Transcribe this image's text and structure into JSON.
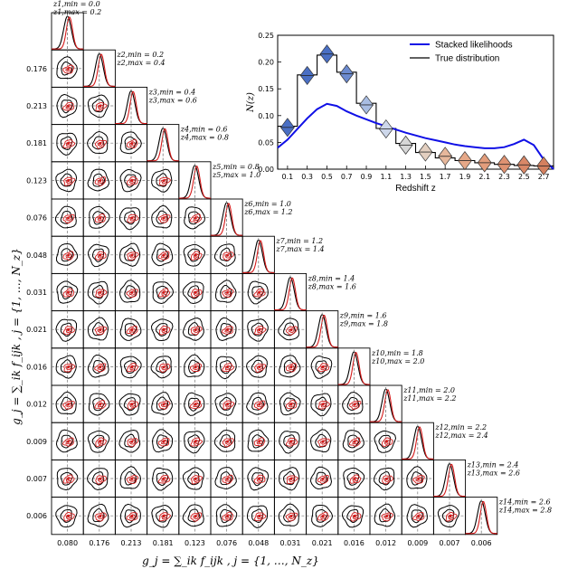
{
  "colors": {
    "black": "#000000",
    "red": "#d41a1a",
    "blue": "#1010e6",
    "dash": "#777777"
  },
  "corner": {
    "xlabel": "g_j = ∑_ik f_ijk   ,   j = {1, …, N_z}",
    "ylabel": "g_j = ∑_ik f_ijk   ,   j = {1, …, N_z}",
    "values": [
      "0.080",
      "0.176",
      "0.213",
      "0.181",
      "0.123",
      "0.076",
      "0.048",
      "0.031",
      "0.021",
      "0.016",
      "0.012",
      "0.009",
      "0.007",
      "0.006"
    ],
    "bins": [
      {
        "min": "z1,min = 0.0",
        "max": "z1,max = 0.2"
      },
      {
        "min": "z2,min = 0.2",
        "max": "z2,max = 0.4"
      },
      {
        "min": "z3,min = 0.4",
        "max": "z3,max = 0.6"
      },
      {
        "min": "z4,min = 0.6",
        "max": "z4,max = 0.8"
      },
      {
        "min": "z5,min = 0.8",
        "max": "z5,max = 1.0"
      },
      {
        "min": "z6,min = 1.0",
        "max": "z6,max = 1.2"
      },
      {
        "min": "z7,min = 1.2",
        "max": "z7,max = 1.4"
      },
      {
        "min": "z8,min = 1.4",
        "max": "z8,max = 1.6"
      },
      {
        "min": "z9,min = 1.6",
        "max": "z9,max = 1.8"
      },
      {
        "min": "z10,min = 1.8",
        "max": "z10,max = 2.0"
      },
      {
        "min": "z11,min = 2.0",
        "max": "z11,max = 2.2"
      },
      {
        "min": "z12,min = 2.2",
        "max": "z12,max = 2.4"
      },
      {
        "min": "z13,min = 2.4",
        "max": "z13,max = 2.6"
      },
      {
        "min": "z14,min = 2.6",
        "max": "z14,max = 2.8"
      }
    ]
  },
  "chart_data": {
    "type": "line",
    "xlabel": "Redshift z",
    "ylabel": "N(z)",
    "xlim": [
      0.0,
      2.8
    ],
    "ylim": [
      0.0,
      0.25
    ],
    "xticks": [
      "0.1",
      "0.3",
      "0.5",
      "0.7",
      "0.9",
      "1.1",
      "1.3",
      "1.5",
      "1.7",
      "1.9",
      "2.1",
      "2.3",
      "2.5",
      "2.7"
    ],
    "yticks": [
      "0.00",
      "0.05",
      "0.10",
      "0.15",
      "0.20",
      "0.25"
    ],
    "legend": {
      "position": "top-right",
      "entries": [
        "Stacked likelihoods",
        "True distribution"
      ]
    },
    "series": [
      {
        "name": "Stacked likelihoods",
        "color": "#1010e6",
        "x": [
          0.0,
          0.1,
          0.2,
          0.3,
          0.4,
          0.5,
          0.6,
          0.7,
          0.8,
          0.9,
          1.0,
          1.1,
          1.2,
          1.3,
          1.4,
          1.5,
          1.6,
          1.7,
          1.8,
          1.9,
          2.0,
          2.1,
          2.2,
          2.3,
          2.4,
          2.5,
          2.6,
          2.7,
          2.8
        ],
        "y": [
          0.04,
          0.055,
          0.075,
          0.095,
          0.112,
          0.122,
          0.118,
          0.108,
          0.1,
          0.093,
          0.086,
          0.08,
          0.074,
          0.068,
          0.063,
          0.058,
          0.054,
          0.05,
          0.046,
          0.043,
          0.041,
          0.039,
          0.039,
          0.041,
          0.047,
          0.055,
          0.045,
          0.018,
          0.0
        ]
      },
      {
        "name": "True distribution",
        "color": "#000000",
        "bin_edges": [
          0.0,
          0.2,
          0.4,
          0.6,
          0.8,
          1.0,
          1.2,
          1.4,
          1.6,
          1.8,
          2.0,
          2.2,
          2.4,
          2.6,
          2.8
        ],
        "values": [
          0.08,
          0.176,
          0.213,
          0.181,
          0.123,
          0.076,
          0.048,
          0.031,
          0.021,
          0.016,
          0.012,
          0.009,
          0.007,
          0.006
        ]
      }
    ],
    "markers": {
      "x": [
        0.1,
        0.3,
        0.5,
        0.7,
        0.9,
        1.1,
        1.3,
        1.5,
        1.7,
        1.9,
        2.1,
        2.3,
        2.5,
        2.7
      ],
      "y": [
        0.078,
        0.175,
        0.215,
        0.178,
        0.12,
        0.075,
        0.045,
        0.032,
        0.024,
        0.016,
        0.012,
        0.009,
        0.008,
        0.006
      ],
      "colors": [
        "#4a6fc4",
        "#4a6fc4",
        "#4a6fc4",
        "#6c8bd0",
        "#a9bde3",
        "#cdd7ea",
        "#d7d7d7",
        "#e3cfc0",
        "#e6b79b",
        "#e6a888",
        "#e39d7c",
        "#de9272",
        "#d98868",
        "#d4805f"
      ]
    }
  }
}
